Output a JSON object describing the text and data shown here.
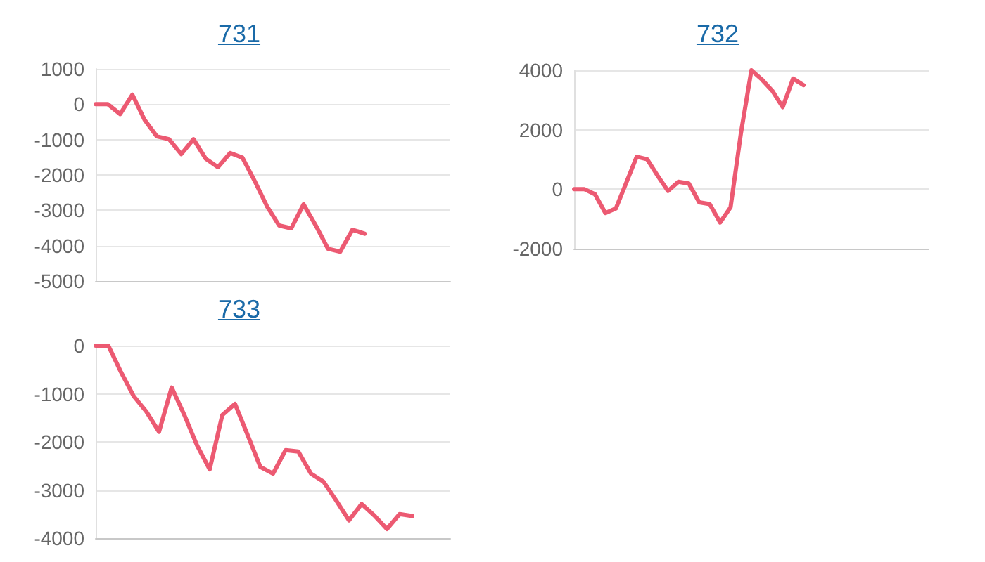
{
  "chart_data": [
    {
      "type": "line",
      "title": "731",
      "categories": [
        null,
        null,
        null,
        null,
        null,
        null,
        null,
        null,
        null,
        null,
        null,
        null,
        null,
        null,
        null,
        null,
        null,
        null,
        null,
        null,
        null,
        null,
        null,
        null,
        null,
        null,
        null,
        null,
        null,
        null
      ],
      "series": [
        {
          "color": "#ec5a72",
          "values": [
            0,
            0,
            -280,
            270,
            -440,
            -910,
            -990,
            -1410,
            -990,
            -1540,
            -1780,
            -1380,
            -1510,
            -2170,
            -2880,
            -3430,
            -3510,
            -2830,
            -3430,
            -4090,
            -4170,
            -3550,
            -3660,
            null,
            null,
            null,
            null,
            null,
            null,
            null
          ]
        }
      ],
      "ylim": [
        -5000,
        1000
      ],
      "yticks": [
        -5000,
        -4000,
        -3000,
        -2000,
        -1000,
        0,
        1000
      ],
      "grid": "y",
      "tick_labels": "y",
      "line_style": "solid"
    },
    {
      "type": "line",
      "title": "732",
      "categories": [
        null,
        null,
        null,
        null,
        null,
        null,
        null,
        null,
        null,
        null,
        null,
        null,
        null,
        null,
        null,
        null,
        null,
        null,
        null,
        null,
        null,
        null,
        null,
        null,
        null,
        null,
        null,
        null,
        null,
        null,
        null,
        null,
        null,
        null,
        null
      ],
      "series": [
        {
          "color": "#ec5a72",
          "values": [
            0,
            0,
            -170,
            -800,
            -650,
            220,
            1090,
            1010,
            460,
            -60,
            250,
            190,
            -440,
            -500,
            -1120,
            -610,
            1900,
            4000,
            3690,
            3310,
            2760,
            3720,
            3500,
            null,
            null,
            null,
            null,
            null,
            null,
            null,
            null,
            null,
            null,
            null,
            null
          ]
        }
      ],
      "ylim": [
        -2000,
        4000
      ],
      "yticks": [
        -2000,
        0,
        2000,
        4000
      ],
      "grid": "y",
      "tick_labels": "y",
      "line_style": "solid"
    },
    {
      "type": "line",
      "title": "733",
      "categories": [
        null,
        null,
        null,
        null,
        null,
        null,
        null,
        null,
        null,
        null,
        null,
        null,
        null,
        null,
        null,
        null,
        null,
        null,
        null,
        null,
        null,
        null,
        null,
        null,
        null,
        null,
        null,
        null,
        null
      ],
      "series": [
        {
          "color": "#ec5a72",
          "values": [
            0,
            0,
            -550,
            -1050,
            -1370,
            -1790,
            -870,
            -1440,
            -2070,
            -2570,
            -1440,
            -1210,
            -1860,
            -2520,
            -2660,
            -2170,
            -2200,
            -2660,
            -2830,
            -3220,
            -3630,
            -3290,
            -3530,
            -3810,
            -3500,
            -3540,
            null,
            null,
            null
          ]
        }
      ],
      "ylim": [
        -4000,
        0
      ],
      "yticks": [
        -4000,
        -3000,
        -2000,
        -1000,
        0
      ],
      "grid": "y",
      "tick_labels": "y",
      "line_style": "solid"
    }
  ]
}
